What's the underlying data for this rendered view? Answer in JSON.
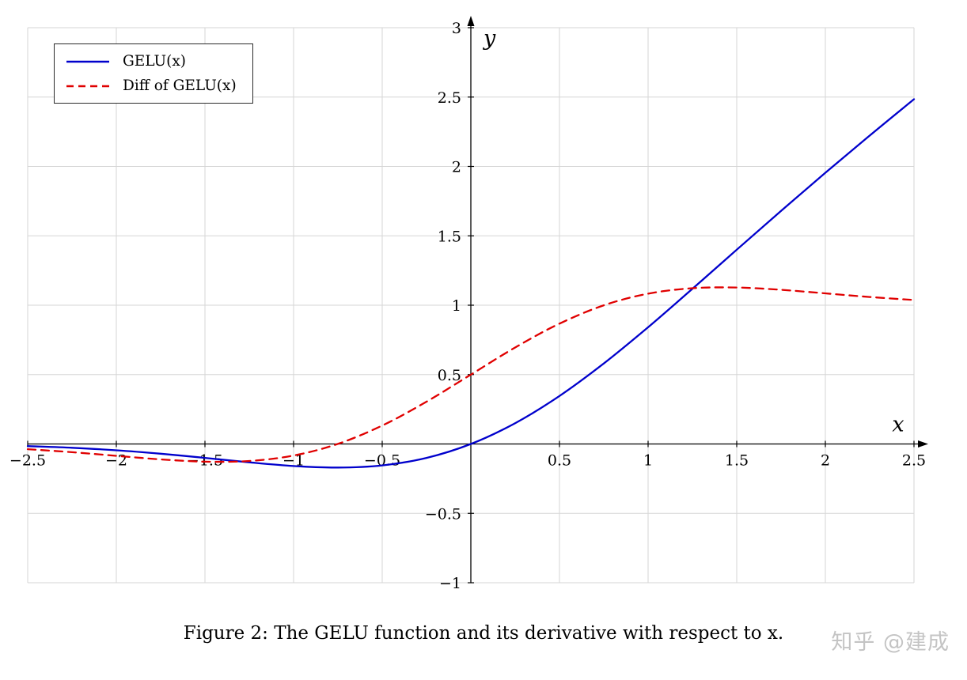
{
  "figure": {
    "caption": "Figure 2: The GELU function and its derivative with respect to x.",
    "watermark": "知乎 @建成"
  },
  "chart_data": {
    "type": "line",
    "title": "",
    "xlabel": "x",
    "ylabel": "y",
    "xlim": [
      -2.5,
      2.5
    ],
    "ylim": [
      -1,
      3
    ],
    "grid": true,
    "grid_step": 0.5,
    "grid_color": "#d6d6d6",
    "axis_color": "#000000",
    "legend_position": "top-left",
    "xticks": [
      {
        "v": -2.5,
        "label": "−2.5"
      },
      {
        "v": -2,
        "label": "−2"
      },
      {
        "v": -1.5,
        "label": "−1.5"
      },
      {
        "v": -1,
        "label": "−1"
      },
      {
        "v": -0.5,
        "label": "−0.5"
      },
      {
        "v": 0.5,
        "label": "0.5"
      },
      {
        "v": 1,
        "label": "1"
      },
      {
        "v": 1.5,
        "label": "1.5"
      },
      {
        "v": 2,
        "label": "2"
      },
      {
        "v": 2.5,
        "label": "2.5"
      }
    ],
    "yticks": [
      {
        "v": 3,
        "label": "3"
      },
      {
        "v": 2.5,
        "label": "2.5"
      },
      {
        "v": 2,
        "label": "2"
      },
      {
        "v": 1.5,
        "label": "1.5"
      },
      {
        "v": 1,
        "label": "1"
      },
      {
        "v": 0.5,
        "label": "0.5"
      },
      {
        "v": -0.5,
        "label": "−0.5"
      },
      {
        "v": -1,
        "label": "−1"
      }
    ],
    "x": [
      -2.5,
      -2.25,
      -2,
      -1.75,
      -1.5,
      -1.25,
      -1,
      -0.75,
      -0.5,
      -0.25,
      0,
      0.25,
      0.5,
      0.75,
      1,
      1.25,
      1.5,
      1.75,
      2,
      2.25,
      2.5
    ],
    "series": [
      {
        "name": "GELU(x)",
        "color": "#0000cc",
        "style": "solid",
        "values": [
          -0.0155,
          -0.0275,
          -0.0455,
          -0.0701,
          -0.1002,
          -0.1321,
          -0.1587,
          -0.17,
          -0.1543,
          -0.1003,
          0,
          0.1497,
          0.3457,
          0.58,
          0.8413,
          1.1179,
          1.3998,
          1.6799,
          1.9545,
          2.2225,
          2.4845
        ]
      },
      {
        "name": "Diff of GELU(x)",
        "color": "#e00000",
        "style": "dashed",
        "values": [
          -0.0376,
          -0.0592,
          -0.0852,
          -0.1109,
          -0.1275,
          -0.1227,
          -0.0833,
          0.0008,
          0.1325,
          0.3046,
          0.5,
          0.6954,
          0.8675,
          0.9992,
          1.0833,
          1.1227,
          1.1275,
          1.1109,
          1.0852,
          1.0592,
          1.0376
        ]
      }
    ]
  }
}
